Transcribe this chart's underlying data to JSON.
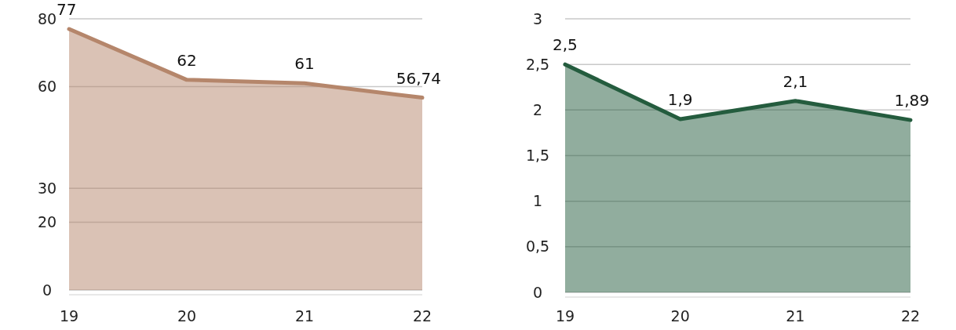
{
  "chart_data": [
    {
      "type": "area",
      "categories": [
        "19",
        "20",
        "21",
        "22"
      ],
      "series": [
        {
          "color": "#b5866b",
          "values": [
            77,
            62,
            61,
            56.74
          ],
          "value_labels": [
            "77",
            "62",
            "61",
            "56,74"
          ]
        }
      ],
      "ylim": [
        0,
        80
      ],
      "yticks": [
        0,
        20,
        30,
        60,
        80
      ],
      "grid": "y"
    },
    {
      "type": "area",
      "categories": [
        "19",
        "20",
        "21",
        "22"
      ],
      "series": [
        {
          "color": "#245c3e",
          "values": [
            2.5,
            1.9,
            2.1,
            1.89
          ],
          "value_labels": [
            "2,5",
            "1,9",
            "2,1",
            "1,89"
          ]
        }
      ],
      "ylim": [
        0,
        3
      ],
      "yticks": [
        0,
        {
          "value": 0.5,
          "label": "0,5"
        },
        1,
        {
          "value": 1.5,
          "label": "1,5"
        },
        2,
        {
          "value": 2.5,
          "label": "2,5"
        },
        3
      ],
      "grid": "y"
    }
  ]
}
